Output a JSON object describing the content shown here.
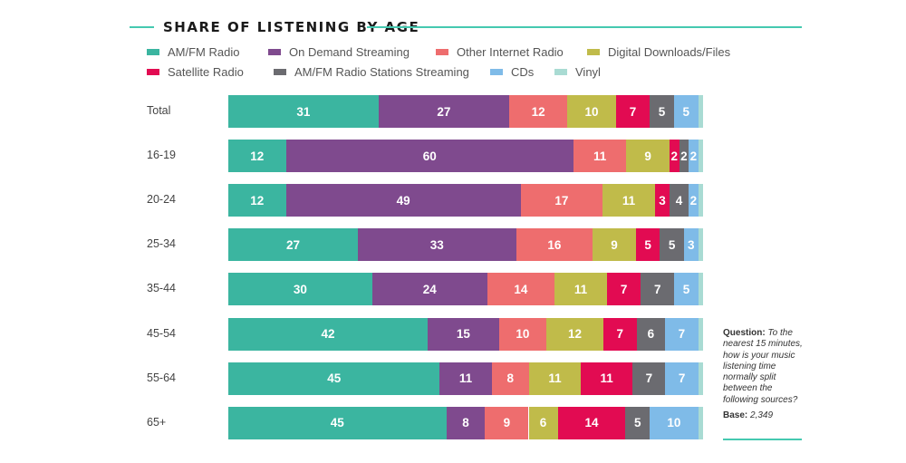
{
  "chart_data": {
    "type": "bar",
    "orientation": "horizontal",
    "stacked": true,
    "title": "SHARE OF LISTENING BY AGE",
    "legend_position": "top",
    "categories": [
      "Total",
      "16-19",
      "20-24",
      "25-34",
      "35-44",
      "45-54",
      "55-64",
      "65+"
    ],
    "series": [
      {
        "name": "AM/FM Radio",
        "color": "#3bb5a0",
        "values": [
          31,
          12,
          12,
          27,
          30,
          42,
          45,
          45
        ]
      },
      {
        "name": "On Demand Streaming",
        "color": "#7f4a8e",
        "values": [
          27,
          60,
          49,
          33,
          24,
          15,
          11,
          8
        ]
      },
      {
        "name": "Other Internet Radio",
        "color": "#ee6d6e",
        "values": [
          12,
          11,
          17,
          16,
          14,
          10,
          8,
          9
        ]
      },
      {
        "name": "Digital Downloads/Files",
        "color": "#c0bb4a",
        "values": [
          10,
          9,
          11,
          9,
          11,
          12,
          11,
          6
        ]
      },
      {
        "name": "Satellite Radio",
        "color": "#e20b52",
        "values": [
          7,
          2,
          3,
          5,
          7,
          7,
          11,
          14
        ]
      },
      {
        "name": "AM/FM Radio Stations Streaming",
        "color": "#6b6b70",
        "values": [
          5,
          2,
          4,
          5,
          7,
          6,
          7,
          5
        ]
      },
      {
        "name": "CDs",
        "color": "#7fbbe8",
        "values": [
          5,
          2,
          2,
          3,
          5,
          7,
          7,
          10
        ]
      },
      {
        "name": "Vinyl",
        "color": "#a9dbd3",
        "values": [
          1,
          1,
          1,
          1,
          1,
          1,
          1,
          1
        ],
        "labels_shown": false
      }
    ],
    "grid": false
  },
  "note": {
    "question_label": "Question:",
    "question_text": "To the nearest 15 minutes, how is your music listening time normally split between the following sources?",
    "base_label": "Base:",
    "base_value": "2,349"
  }
}
